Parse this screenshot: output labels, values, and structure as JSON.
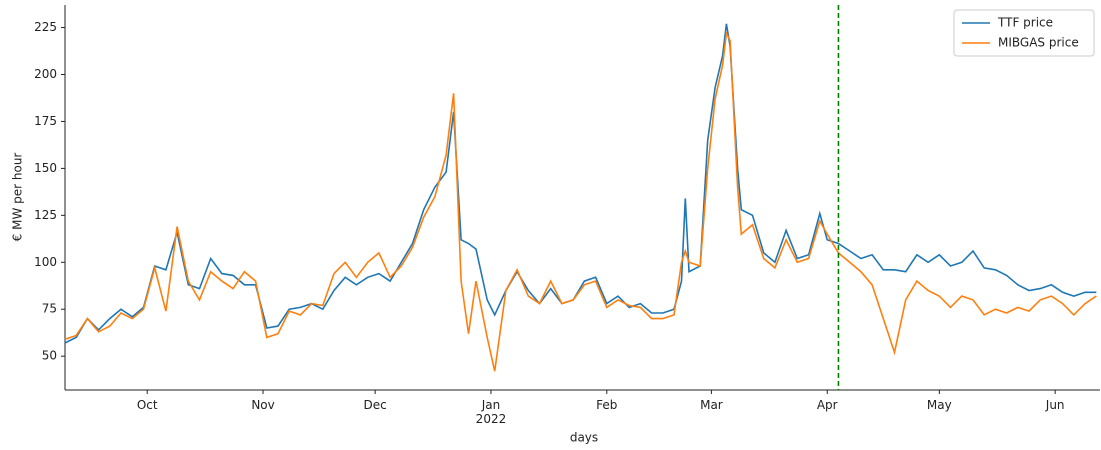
{
  "chart_data": {
    "type": "line",
    "xlabel": "days",
    "ylabel": "€ MW per hour",
    "x": [
      8,
      11,
      14,
      17,
      20,
      23,
      26,
      29,
      32,
      35,
      38,
      41,
      44,
      47,
      50,
      53,
      56,
      59,
      62,
      65,
      68,
      71,
      74,
      77,
      80,
      83,
      86,
      89,
      92,
      95,
      98,
      101,
      104,
      107,
      110,
      112,
      114,
      116,
      118,
      121,
      123,
      126,
      129,
      132,
      135,
      138,
      141,
      144,
      147,
      150,
      153,
      156,
      159,
      162,
      165,
      168,
      171,
      173,
      174,
      175,
      178,
      180,
      182,
      184,
      185,
      186,
      188,
      189,
      192,
      195,
      198,
      201,
      204,
      207,
      210,
      212,
      215,
      218,
      221,
      224,
      227,
      230,
      233,
      236,
      239,
      242,
      245,
      248,
      251,
      254,
      257,
      260,
      263,
      266,
      269,
      272,
      275,
      278,
      281,
      284
    ],
    "series": [
      {
        "name": "TTF price",
        "color": "#1f77b4",
        "values": [
          57,
          60,
          70,
          64,
          70,
          75,
          71,
          76,
          98,
          96,
          116,
          88,
          86,
          102,
          94,
          93,
          88,
          88,
          65,
          66,
          75,
          76,
          78,
          75,
          85,
          92,
          88,
          92,
          94,
          90,
          100,
          110,
          128,
          140,
          148,
          180,
          112,
          110,
          107,
          80,
          72,
          85,
          95,
          85,
          78,
          86,
          78,
          80,
          90,
          92,
          78,
          82,
          76,
          78,
          73,
          73,
          75,
          90,
          134,
          95,
          98,
          165,
          193,
          210,
          227,
          215,
          150,
          128,
          125,
          105,
          100,
          117,
          102,
          104,
          126,
          112,
          110,
          106,
          102,
          104,
          96,
          96,
          95,
          104,
          100,
          104,
          98,
          100,
          106,
          97,
          96,
          93,
          88,
          85,
          86,
          88,
          84,
          82,
          84,
          84
        ]
      },
      {
        "name": "MIBGAS price",
        "color": "#ff7f0e",
        "values": [
          59,
          61,
          70,
          63,
          66,
          73,
          70,
          75,
          97,
          74,
          119,
          90,
          80,
          95,
          90,
          86,
          95,
          90,
          60,
          62,
          74,
          72,
          78,
          77,
          94,
          100,
          92,
          100,
          105,
          92,
          98,
          108,
          124,
          135,
          157,
          190,
          90,
          62,
          90,
          60,
          42,
          85,
          96,
          82,
          78,
          90,
          78,
          80,
          88,
          90,
          76,
          80,
          77,
          76,
          70,
          70,
          72,
          100,
          106,
          100,
          98,
          150,
          187,
          205,
          222,
          218,
          140,
          115,
          120,
          102,
          97,
          112,
          100,
          102,
          122,
          115,
          105,
          100,
          95,
          88,
          70,
          52,
          80,
          90,
          85,
          82,
          76,
          82,
          80,
          72,
          75,
          73,
          76,
          74,
          80,
          82,
          78,
          72,
          78,
          82
        ]
      }
    ],
    "xlim": [
      8,
      285
    ],
    "xticks": [
      {
        "value": 30,
        "label": "Oct"
      },
      {
        "value": 61,
        "label": "Nov"
      },
      {
        "value": 91,
        "label": "Dec"
      },
      {
        "value": 122,
        "label": "Jan\n2022"
      },
      {
        "value": 153,
        "label": "Feb"
      },
      {
        "value": 181,
        "label": "Mar"
      },
      {
        "value": 212,
        "label": "Apr"
      },
      {
        "value": 242,
        "label": "May"
      },
      {
        "value": 273,
        "label": "Jun"
      }
    ],
    "ylim": [
      32,
      237
    ],
    "yticks": [
      50,
      75,
      100,
      125,
      150,
      175,
      200,
      225
    ],
    "vline_x": 215,
    "vline_color": "#008000",
    "legend": "upper right"
  }
}
